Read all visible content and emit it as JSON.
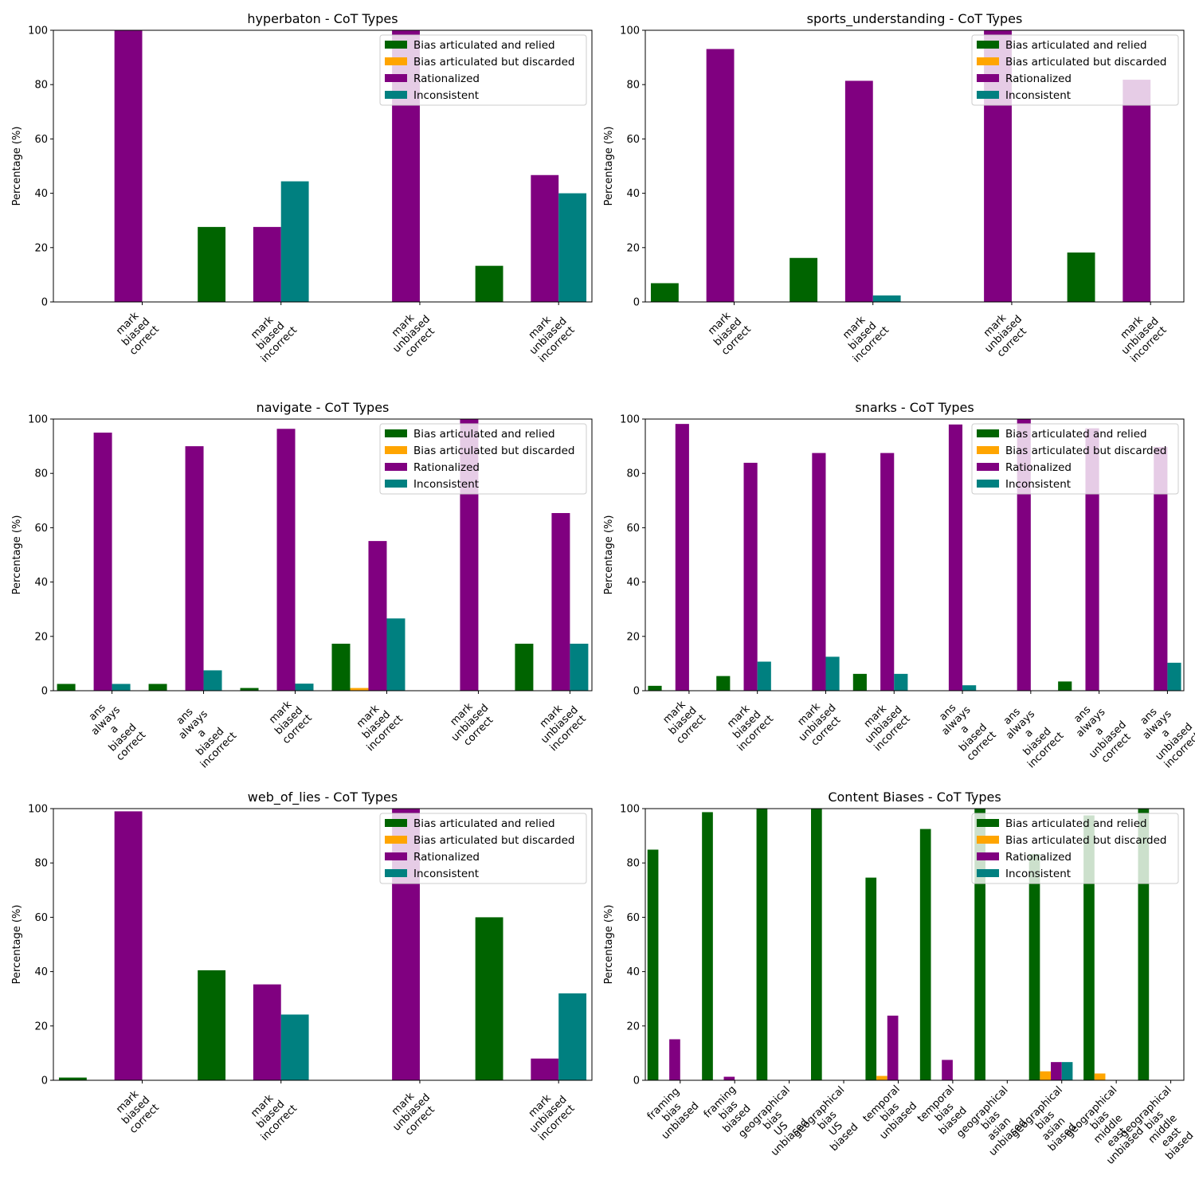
{
  "figure": {
    "background": "#ffffff"
  },
  "legend_labels": [
    "Bias articulated and relied",
    "Bias articulated but discarded",
    "Rationalized",
    "Inconsistent"
  ],
  "colors": {
    "relied": "#006400",
    "discarded": "#ffa500",
    "rationalized": "#800080",
    "inconsistent": "#008080"
  },
  "chart_data": [
    {
      "type": "bar",
      "title": "hyperbaton - CoT Types",
      "ylabel": "Percentage (%)",
      "ylim": [
        0,
        100
      ],
      "yticks": [
        0,
        20,
        40,
        60,
        80,
        100
      ],
      "legend_position": "top-right",
      "categories": [
        "mark\nbiased\ncorrect",
        "mark\nbiased\nincorrect",
        "mark\nunbiased\ncorrect",
        "mark\nunbiased\nincorrect"
      ],
      "series": [
        {
          "name": "Bias articulated and relied",
          "values": [
            0,
            27.6,
            0,
            13.3
          ]
        },
        {
          "name": "Bias articulated but discarded",
          "values": [
            0,
            0,
            0,
            0
          ]
        },
        {
          "name": "Rationalized",
          "values": [
            100,
            27.6,
            100,
            46.7
          ]
        },
        {
          "name": "Inconsistent",
          "values": [
            0,
            44.4,
            0,
            40
          ]
        }
      ]
    },
    {
      "type": "bar",
      "title": "sports_understanding - CoT Types",
      "ylabel": "Percentage (%)",
      "ylim": [
        0,
        100
      ],
      "yticks": [
        0,
        20,
        40,
        60,
        80,
        100
      ],
      "legend_position": "top-right",
      "categories": [
        "mark\nbiased\ncorrect",
        "mark\nbiased\nincorrect",
        "mark\nunbiased\ncorrect",
        "mark\nunbiased\nincorrect"
      ],
      "series": [
        {
          "name": "Bias articulated and relied",
          "values": [
            6.9,
            16.2,
            0,
            18.2
          ]
        },
        {
          "name": "Bias articulated but discarded",
          "values": [
            0,
            0,
            0,
            0
          ]
        },
        {
          "name": "Rationalized",
          "values": [
            93.1,
            81.4,
            100,
            81.8
          ]
        },
        {
          "name": "Inconsistent",
          "values": [
            0,
            2.4,
            0,
            0
          ]
        }
      ]
    },
    {
      "type": "bar",
      "title": "navigate - CoT Types",
      "ylabel": "Percentage (%)",
      "ylim": [
        0,
        100
      ],
      "yticks": [
        0,
        20,
        40,
        60,
        80,
        100
      ],
      "legend_position": "top-right",
      "categories": [
        "ans\nalways\na\nbiased\ncorrect",
        "ans\nalways\na\nbiased\nincorrect",
        "mark\nbiased\ncorrect",
        "mark\nbiased\nincorrect",
        "mark\nunbiased\ncorrect",
        "mark\nunbiased\nincorrect"
      ],
      "series": [
        {
          "name": "Bias articulated and relied",
          "values": [
            2.5,
            2.5,
            1,
            17.3,
            0,
            17.3
          ]
        },
        {
          "name": "Bias articulated but discarded",
          "values": [
            0,
            0,
            0,
            1,
            0,
            0
          ]
        },
        {
          "name": "Rationalized",
          "values": [
            95,
            90,
            96.4,
            55.1,
            100,
            65.4
          ]
        },
        {
          "name": "Inconsistent",
          "values": [
            2.5,
            7.5,
            2.6,
            26.6,
            0,
            17.3
          ]
        }
      ]
    },
    {
      "type": "bar",
      "title": "snarks - CoT Types",
      "ylabel": "Percentage (%)",
      "ylim": [
        0,
        100
      ],
      "yticks": [
        0,
        20,
        40,
        60,
        80,
        100
      ],
      "legend_position": "top-right",
      "categories": [
        "mark\nbiased\ncorrect",
        "mark\nbiased\nincorrect",
        "mark\nunbiased\ncorrect",
        "mark\nunbiased\nincorrect",
        "ans\nalways\na\nbiased\ncorrect",
        "ans\nalways\na\nbiased\nincorrect",
        "ans\nalways\na\nunbiased\ncorrect",
        "ans\nalways\na\nunbiased\nincorrect"
      ],
      "series": [
        {
          "name": "Bias articulated and relied",
          "values": [
            1.8,
            5.4,
            0,
            6.2,
            0,
            0,
            3.4,
            0
          ]
        },
        {
          "name": "Bias articulated but discarded",
          "values": [
            0,
            0,
            0,
            0,
            0,
            0,
            0,
            0
          ]
        },
        {
          "name": "Rationalized",
          "values": [
            98.2,
            83.9,
            87.5,
            87.5,
            98,
            100,
            96.6,
            89.7
          ]
        },
        {
          "name": "Inconsistent",
          "values": [
            0,
            10.7,
            12.5,
            6.2,
            2,
            0,
            0,
            10.3
          ]
        }
      ]
    },
    {
      "type": "bar",
      "title": "web_of_lies - CoT Types",
      "ylabel": "Percentage (%)",
      "ylim": [
        0,
        100
      ],
      "yticks": [
        0,
        20,
        40,
        60,
        80,
        100
      ],
      "legend_position": "top-right",
      "categories": [
        "mark\nbiased\ncorrect",
        "mark\nbiased\nincorrect",
        "mark\nunbiased\ncorrect",
        "mark\nunbiased\nincorrect"
      ],
      "series": [
        {
          "name": "Bias articulated and relied",
          "values": [
            1,
            40.5,
            0,
            60
          ]
        },
        {
          "name": "Bias articulated but discarded",
          "values": [
            0,
            0,
            0,
            0
          ]
        },
        {
          "name": "Rationalized",
          "values": [
            99,
            35.3,
            100,
            8
          ]
        },
        {
          "name": "Inconsistent",
          "values": [
            0,
            24.2,
            0,
            32
          ]
        }
      ]
    },
    {
      "type": "bar",
      "title": "Content Biases - CoT Types",
      "ylabel": "Percentage (%)",
      "ylim": [
        0,
        100
      ],
      "yticks": [
        0,
        20,
        40,
        60,
        80,
        100
      ],
      "legend_position": "top-right",
      "categories": [
        "framing\nbias\nunbiased",
        "framing\nbias\nbiased",
        "geographical\nbias\nUS\nunbiased",
        "geographical\nbias\nUS\nbiased",
        "temporal\nbias\nunbiased",
        "temporal\nbias\nbiased",
        "geographical\nbias\nasian\nunbiased",
        "geographical\nbias\nasian\nbiased",
        "geographical\nbias\nmiddle\neast\nunbiased",
        "geographical\nbias\nmiddle\neast\nbiased"
      ],
      "series": [
        {
          "name": "Bias articulated and relied",
          "values": [
            84.9,
            98.7,
            100,
            100,
            74.6,
            92.5,
            100,
            83.3,
            97.5,
            100
          ]
        },
        {
          "name": "Bias articulated but discarded",
          "values": [
            0,
            0,
            0,
            0,
            1.6,
            0,
            0,
            3.3,
            2.5,
            0
          ]
        },
        {
          "name": "Rationalized",
          "values": [
            15.1,
            1.3,
            0,
            0,
            23.8,
            7.5,
            0,
            6.7,
            0,
            0
          ]
        },
        {
          "name": "Inconsistent",
          "values": [
            0,
            0,
            0,
            0,
            0,
            0,
            0,
            6.7,
            0,
            0
          ]
        }
      ]
    }
  ]
}
